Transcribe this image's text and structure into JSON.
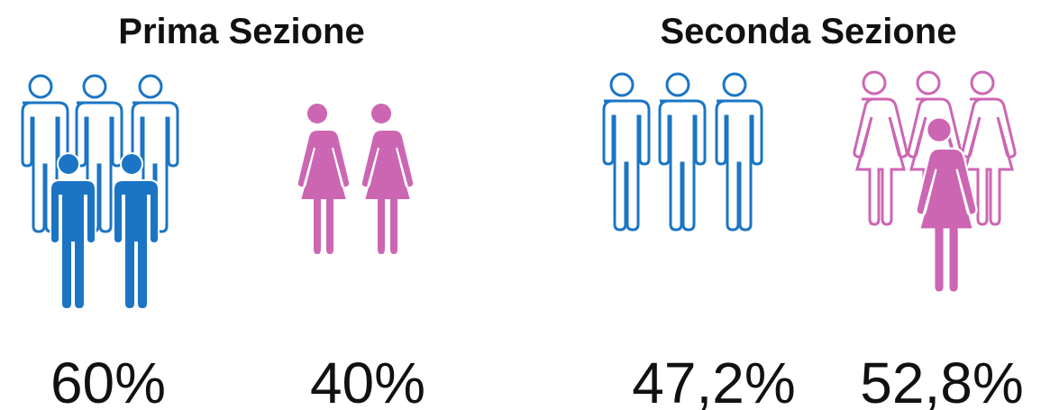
{
  "sections": [
    {
      "title": "Prima Sezione",
      "groups": [
        {
          "label": "60%"
        },
        {
          "label": "40%"
        }
      ]
    },
    {
      "title": "Seconda Sezione",
      "groups": [
        {
          "label": "47,2%"
        },
        {
          "label": "52,8%"
        }
      ]
    }
  ]
}
